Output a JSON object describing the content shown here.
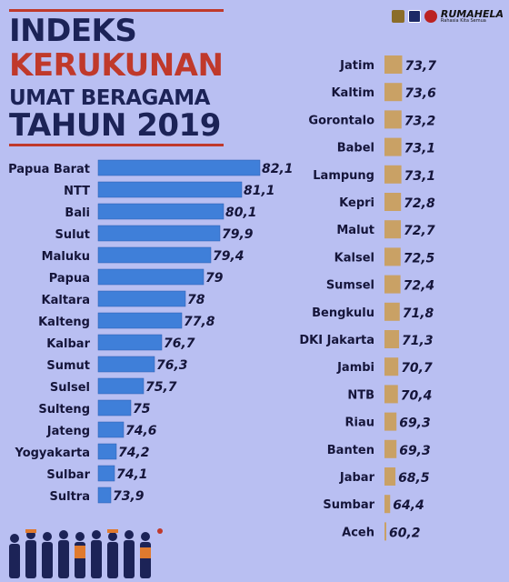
{
  "title": {
    "line1": "INDEKS",
    "line2": "KERUKUNAN",
    "line3": "UMAT BERAGAMA",
    "line4": "TAHUN 2019"
  },
  "brand": {
    "name": "RUMAHELA",
    "sub": "Rahasia Kita Semua"
  },
  "colors": {
    "background": "#b9bff2",
    "left_bar": "#3f7fd9",
    "right_bar": "#c9a165",
    "title_red": "#c0392b",
    "title_navy": "#1c2357"
  },
  "chart_data": [
    {
      "type": "bar",
      "orientation": "horizontal",
      "categories": [
        "Papua Barat",
        "NTT",
        "Bali",
        "Sulut",
        "Maluku",
        "Papua",
        "Kaltara",
        "Kalteng",
        "Kalbar",
        "Sumut",
        "Sulsel",
        "Sulteng",
        "Jateng",
        "Yogyakarta",
        "Sulbar",
        "Sultra"
      ],
      "values": [
        82.1,
        81.1,
        80.1,
        79.9,
        79.4,
        79,
        78,
        77.8,
        76.7,
        76.3,
        75.7,
        75,
        74.6,
        74.2,
        74.1,
        73.9
      ],
      "value_labels": [
        "82,1",
        "81,1",
        "80,1",
        "79,9",
        "79,4",
        "79",
        "78",
        "77,8",
        "76,7",
        "76,3",
        "75,7",
        "75",
        "74,6",
        "74,2",
        "74,1",
        "73,9"
      ],
      "color": "#3f7fd9"
    },
    {
      "type": "bar",
      "orientation": "horizontal",
      "categories": [
        "Jatim",
        "Kaltim",
        "Gorontalo",
        "Babel",
        "Lampung",
        "Kepri",
        "Malut",
        "Kalsel",
        "Sumsel",
        "Bengkulu",
        "DKI Jakarta",
        "Jambi",
        "NTB",
        "Riau",
        "Banten",
        "Jabar",
        "Sumbar",
        "Aceh"
      ],
      "values": [
        73.7,
        73.6,
        73.2,
        73.1,
        73.1,
        72.8,
        72.7,
        72.5,
        72.4,
        71.8,
        71.3,
        70.7,
        70.4,
        69.3,
        69.3,
        68.5,
        64.4,
        60.2
      ],
      "value_labels": [
        "73,7",
        "73,6",
        "73,2",
        "73,1",
        "73,1",
        "72,8",
        "72,7",
        "72,5",
        "72,4",
        "71,8",
        "71,3",
        "70,7",
        "70,4",
        "69,3",
        "69,3",
        "68,5",
        "64,4",
        "60,2"
      ],
      "color": "#c9a165"
    }
  ]
}
